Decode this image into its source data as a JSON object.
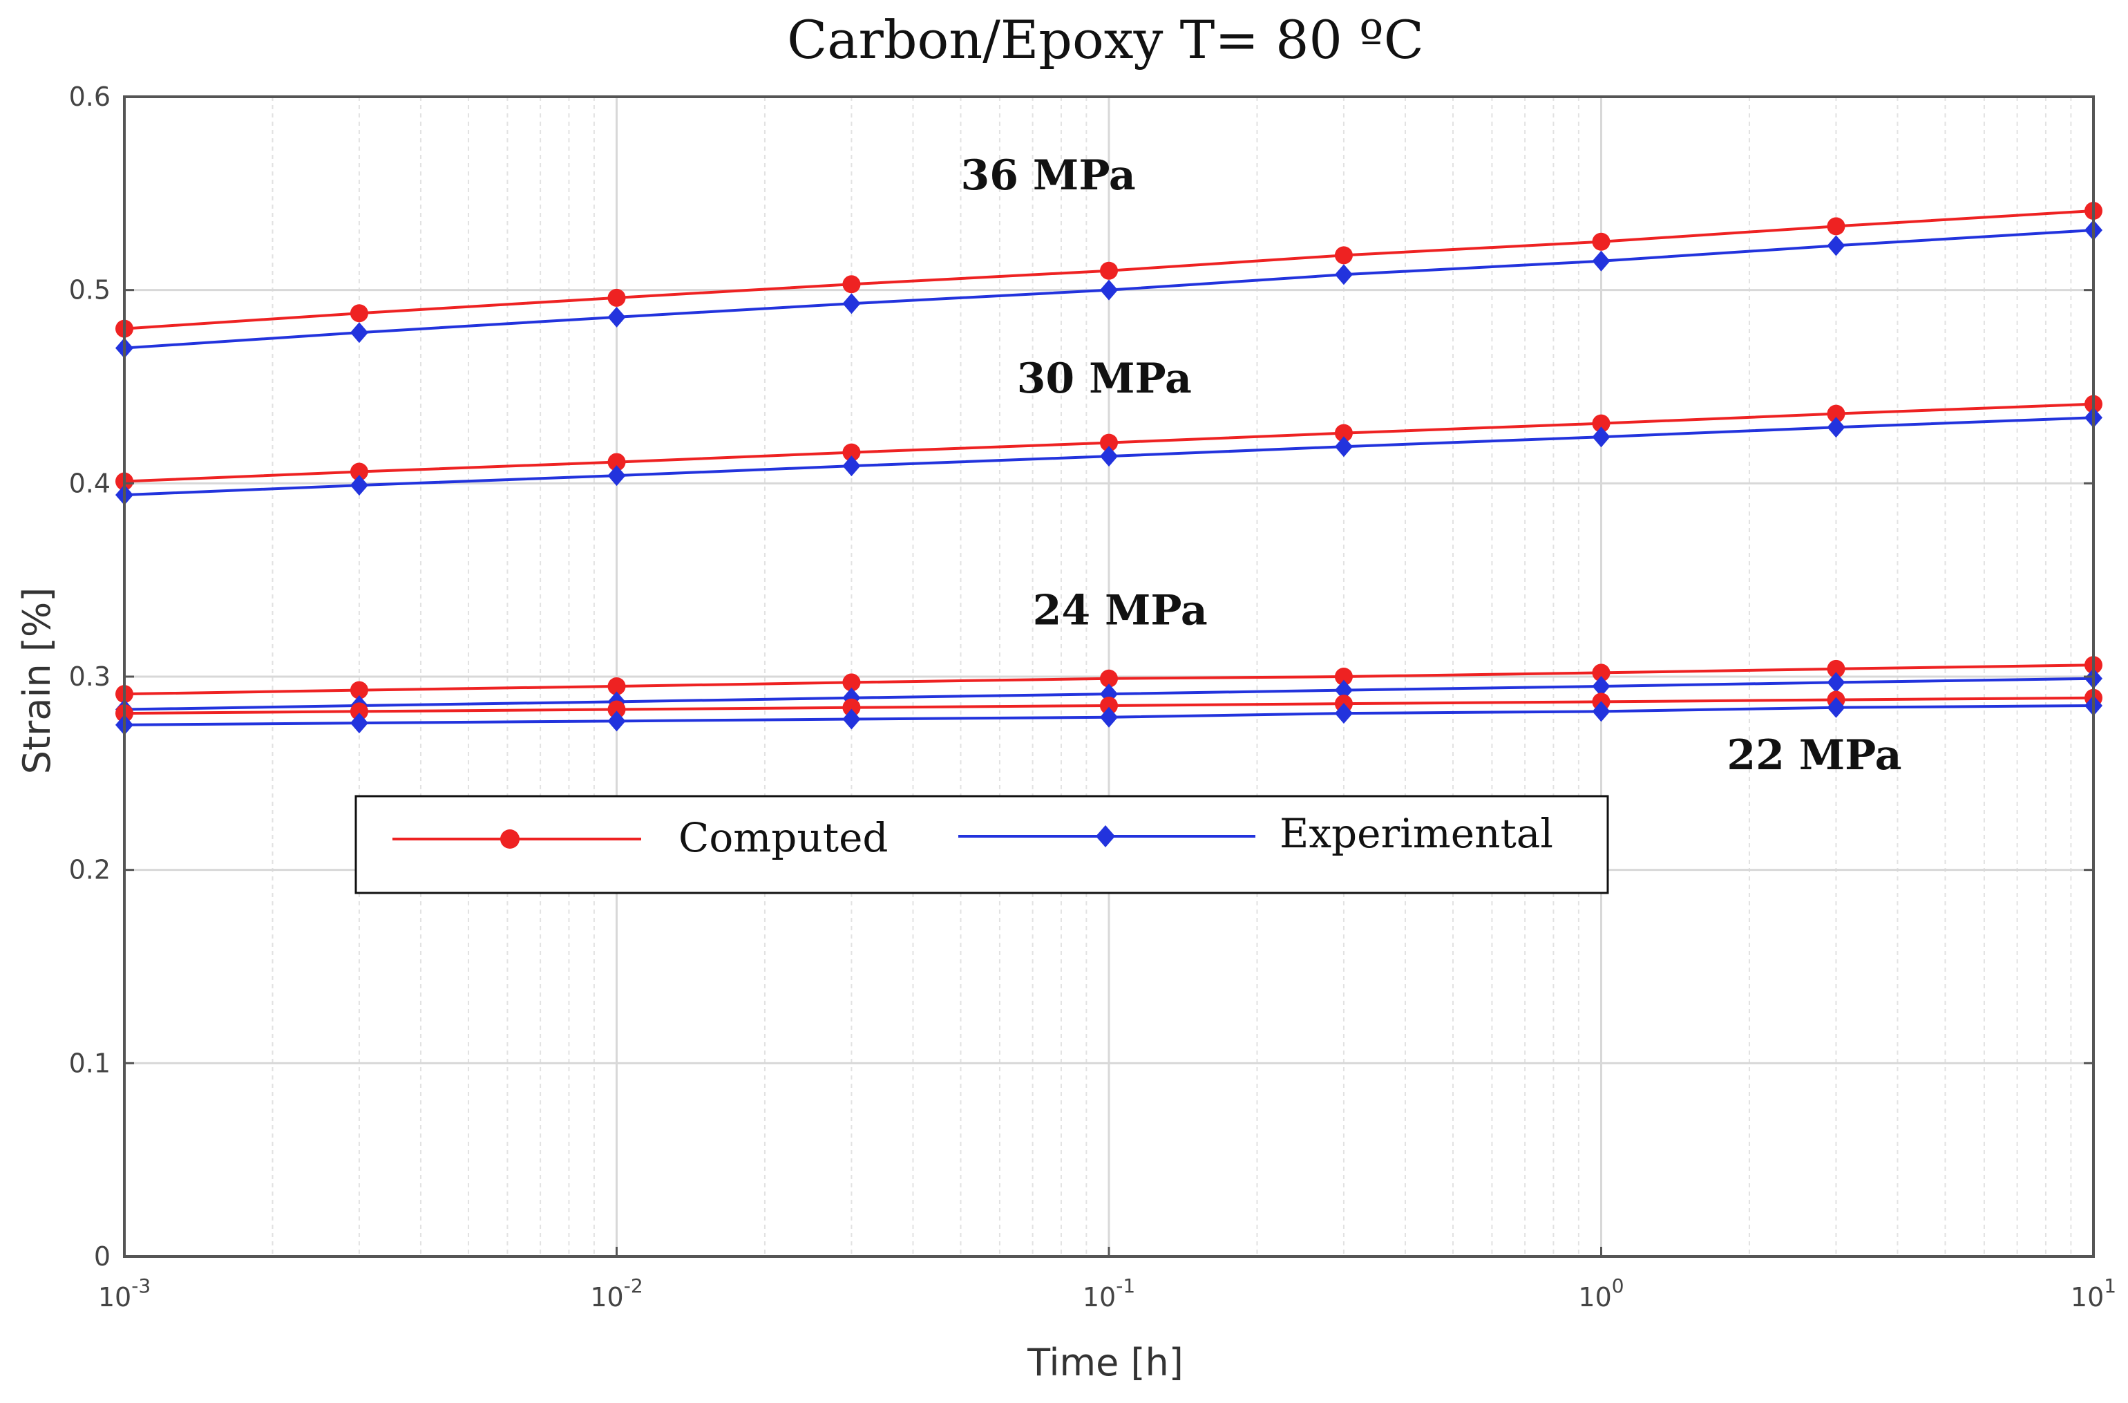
{
  "chart_data": {
    "type": "line",
    "title": "Carbon/Epoxy T= 80 ºC",
    "xlabel": "Time [h]",
    "ylabel": "Strain [%]",
    "xscale": "log",
    "xlim": [
      0.001,
      10
    ],
    "ylim": [
      0,
      0.6
    ],
    "grid": true,
    "x": [
      0.001,
      0.003,
      0.01,
      0.03,
      0.1,
      0.3,
      1,
      3,
      10
    ],
    "x_ticks": [
      {
        "value": 0.001,
        "base": "10",
        "exp": "-3"
      },
      {
        "value": 0.01,
        "base": "10",
        "exp": "-2"
      },
      {
        "value": 0.1,
        "base": "10",
        "exp": "-1"
      },
      {
        "value": 1,
        "base": "10",
        "exp": "0"
      },
      {
        "value": 10,
        "base": "10",
        "exp": "1"
      }
    ],
    "y_ticks": [
      {
        "value": 0,
        "label": "0"
      },
      {
        "value": 0.1,
        "label": "0.1"
      },
      {
        "value": 0.2,
        "label": "0.2"
      },
      {
        "value": 0.3,
        "label": "0.3"
      },
      {
        "value": 0.4,
        "label": "0.4"
      },
      {
        "value": 0.5,
        "label": "0.5"
      },
      {
        "value": 0.6,
        "label": "0.6"
      }
    ],
    "series": [
      {
        "name": "Computed 36 MPa",
        "kind": "computed",
        "values": [
          0.48,
          0.488,
          0.496,
          0.503,
          0.51,
          0.518,
          0.525,
          0.533,
          0.541
        ]
      },
      {
        "name": "Experimental 36 MPa",
        "kind": "experimental",
        "values": [
          0.47,
          0.478,
          0.486,
          0.493,
          0.5,
          0.508,
          0.515,
          0.523,
          0.531
        ]
      },
      {
        "name": "Computed 30 MPa",
        "kind": "computed",
        "values": [
          0.401,
          0.406,
          0.411,
          0.416,
          0.421,
          0.426,
          0.431,
          0.436,
          0.441
        ]
      },
      {
        "name": "Experimental 30 MPa",
        "kind": "experimental",
        "values": [
          0.394,
          0.399,
          0.404,
          0.409,
          0.414,
          0.419,
          0.424,
          0.429,
          0.434
        ]
      },
      {
        "name": "Computed 24 MPa",
        "kind": "computed",
        "values": [
          0.291,
          0.293,
          0.295,
          0.297,
          0.299,
          0.3,
          0.302,
          0.304,
          0.306
        ]
      },
      {
        "name": "Experimental 24 MPa",
        "kind": "experimental",
        "values": [
          0.283,
          0.285,
          0.287,
          0.289,
          0.291,
          0.293,
          0.295,
          0.297,
          0.299
        ]
      },
      {
        "name": "Computed 22 MPa",
        "kind": "computed",
        "values": [
          0.281,
          0.282,
          0.283,
          0.284,
          0.285,
          0.286,
          0.287,
          0.288,
          0.289
        ]
      },
      {
        "name": "Experimental 22 MPa",
        "kind": "experimental",
        "values": [
          0.275,
          0.276,
          0.277,
          0.278,
          0.279,
          0.281,
          0.282,
          0.284,
          0.285
        ]
      }
    ],
    "annotations": [
      {
        "text": "36 MPa",
        "x": 0.05,
        "y": 0.552
      },
      {
        "text": "30 MPa",
        "x": 0.065,
        "y": 0.447
      },
      {
        "text": "24 MPa",
        "x": 0.07,
        "y": 0.327
      },
      {
        "text": "22 MPa",
        "x": 1.8,
        "y": 0.252
      }
    ],
    "legend": {
      "placement": "center-left",
      "entries": [
        {
          "label": "Computed",
          "kind": "computed"
        },
        {
          "label": "Experimental",
          "kind": "experimental"
        }
      ]
    },
    "colors": {
      "computed": "#ee2222",
      "experimental": "#2233dd",
      "grid": "#d8d8d8",
      "axis": "#555555"
    }
  }
}
